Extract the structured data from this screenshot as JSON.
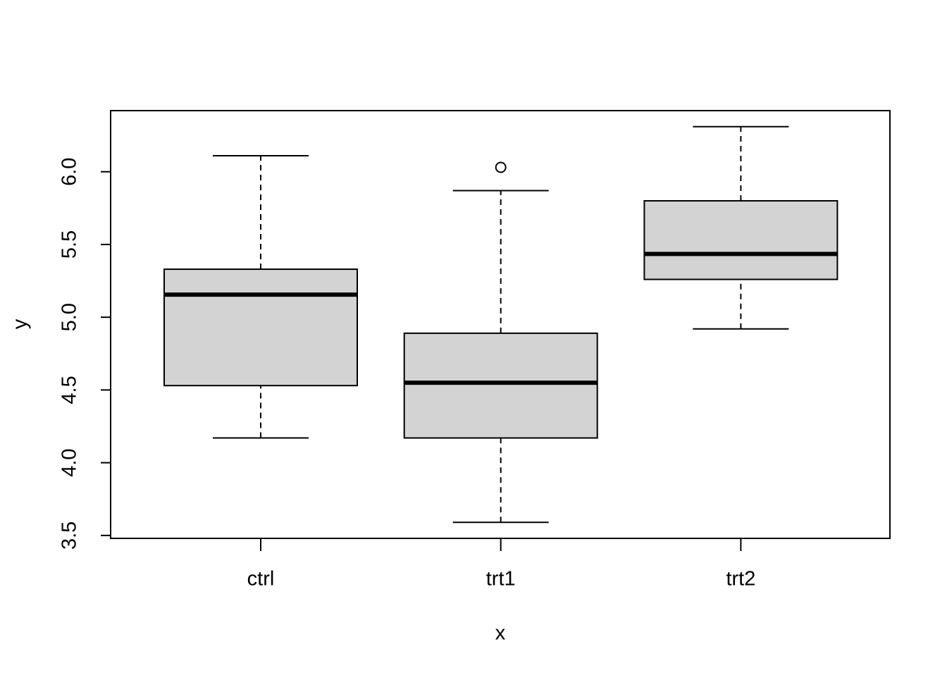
{
  "chart_data": {
    "type": "boxplot",
    "x_label": "x",
    "y_label": "y",
    "categories": [
      "ctrl",
      "trt1",
      "trt2"
    ],
    "boxes": [
      {
        "min": 4.17,
        "q1": 4.53,
        "median": 5.155,
        "q3": 5.33,
        "max": 6.11,
        "outliers": []
      },
      {
        "min": 3.59,
        "q1": 4.17,
        "median": 4.55,
        "q3": 4.89,
        "max": 5.87,
        "outliers": [
          6.03
        ]
      },
      {
        "min": 4.92,
        "q1": 5.26,
        "median": 5.435,
        "q3": 5.8,
        "max": 6.31,
        "outliers": []
      }
    ],
    "color": "#d3d3d3",
    "ylim": [
      3.48,
      6.42
    ],
    "yticks": [
      3.5,
      {
        "value": 4,
        "label": "4.0"
      },
      4.5,
      {
        "value": 5,
        "label": "5.0"
      },
      5.5,
      {
        "value": 6,
        "label": "6.0"
      }
    ]
  }
}
